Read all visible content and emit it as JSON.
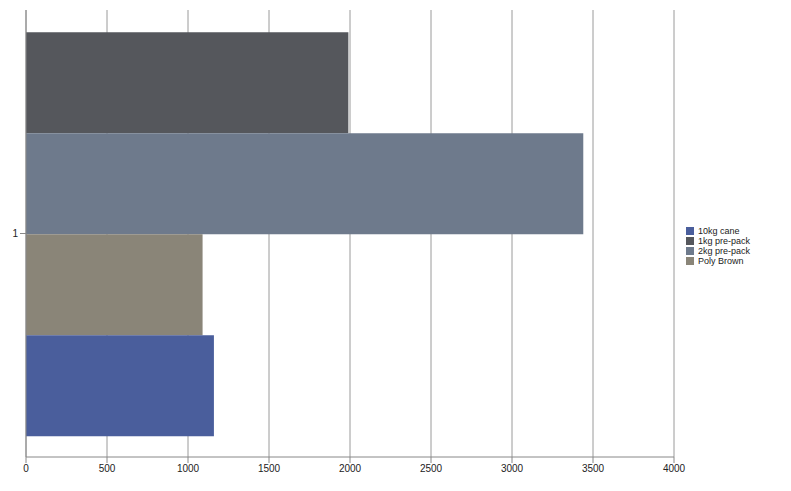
{
  "chart_data": {
    "type": "bar",
    "orientation": "horizontal",
    "categories": [
      "1"
    ],
    "series": [
      {
        "name": "1kg pre-pack",
        "color": "#55575c",
        "values": [
          1990
        ]
      },
      {
        "name": "2kg pre-pack",
        "color": "#6e7a8c",
        "values": [
          3440
        ]
      },
      {
        "name": "Poly Brown",
        "color": "#8a8578",
        "values": [
          1090
        ]
      },
      {
        "name": "10kg cane",
        "color": "#4a5e9c",
        "values": [
          1160
        ]
      }
    ],
    "xlim": [
      0,
      4000
    ],
    "xticks": [
      0,
      500,
      1000,
      1500,
      2000,
      2500,
      3000,
      3500,
      4000
    ],
    "grid": true,
    "legend": "right"
  }
}
